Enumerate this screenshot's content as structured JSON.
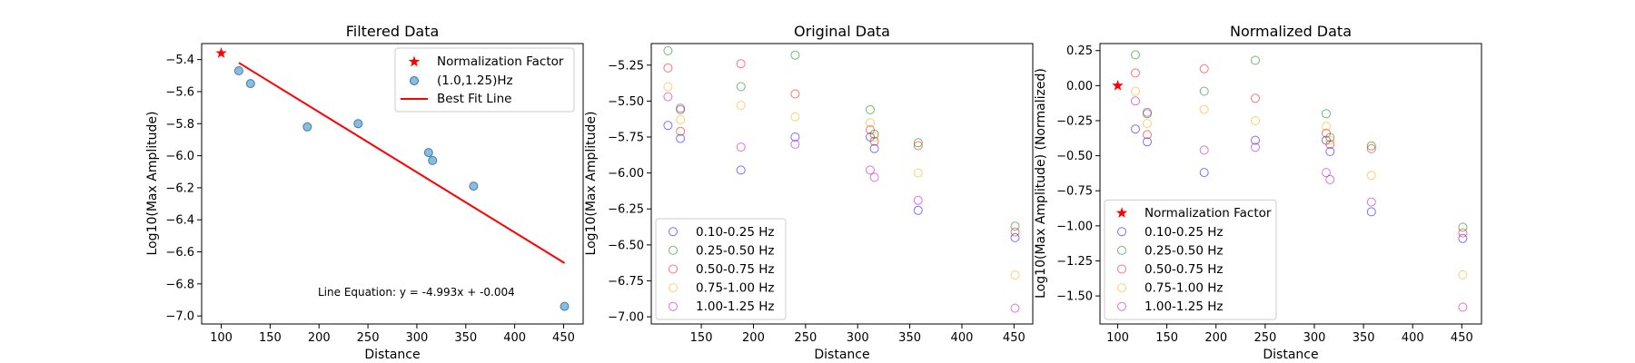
{
  "chart_data": [
    {
      "type": "scatter",
      "title": "Filtered Data",
      "xlabel": "Distance",
      "ylabel": "Log10(Max Amplitude)",
      "xlim": [
        80,
        470
      ],
      "ylim": [
        -7.05,
        -5.3
      ],
      "xticks": [
        100,
        150,
        200,
        250,
        300,
        350,
        400,
        450
      ],
      "yticks": [
        -7.0,
        -6.8,
        -6.6,
        -6.4,
        -6.2,
        -6.0,
        -5.8,
        -5.6,
        -5.4
      ],
      "legend_position": "upper right",
      "normalization_factor": {
        "name": "Normalization Factor",
        "x": 100,
        "y": -5.36,
        "color": "#ff0000",
        "marker": "star"
      },
      "series": [
        {
          "name": "(1.0,1.25)Hz",
          "color": "#1f77b4",
          "x": [
            118,
            130,
            188,
            240,
            312,
            316,
            358,
            451
          ],
          "y": [
            -5.47,
            -5.55,
            -5.82,
            -5.8,
            -5.98,
            -6.03,
            -6.19,
            -6.94
          ]
        }
      ],
      "fit_line": {
        "name": "Best Fit Line",
        "color": "#ff0000",
        "x": [
          118,
          451
        ],
        "y": [
          -5.42,
          -6.67
        ]
      },
      "annotation": "Line Equation: y = -4.993x + -0.004"
    },
    {
      "type": "scatter",
      "title": "Original Data",
      "xlabel": "Distance",
      "ylabel": "Log10(Max Amplitude)",
      "xlim": [
        102,
        468
      ],
      "ylim": [
        -7.05,
        -5.1
      ],
      "xticks": [
        150,
        200,
        250,
        300,
        350,
        400,
        450
      ],
      "yticks": [
        -7.0,
        -6.75,
        -6.5,
        -6.25,
        -6.0,
        -5.75,
        -5.5,
        -5.25
      ],
      "legend_position": "lower left",
      "x": [
        118,
        130,
        188,
        240,
        312,
        316,
        358,
        451
      ],
      "series": [
        {
          "name": "0.10-0.25 Hz",
          "color": "#0000ff",
          "y": [
            -5.67,
            -5.76,
            -5.98,
            -5.75,
            -5.75,
            -5.83,
            -6.26,
            -6.45
          ]
        },
        {
          "name": "0.25-0.50 Hz",
          "color": "#008000",
          "y": [
            -5.15,
            -5.56,
            -5.4,
            -5.18,
            -5.56,
            -5.73,
            -5.79,
            -6.37
          ]
        },
        {
          "name": "0.50-0.75 Hz",
          "color": "#ff0000",
          "y": [
            -5.27,
            -5.71,
            -5.24,
            -5.45,
            -5.7,
            -5.78,
            -5.81,
            -6.41
          ]
        },
        {
          "name": "0.75-1.00 Hz",
          "color": "#ffa500",
          "y": [
            -5.4,
            -5.63,
            -5.53,
            -5.61,
            -5.65,
            -5.75,
            -6.0,
            -6.71
          ]
        },
        {
          "name": "1.00-1.25 Hz",
          "color": "#bf00bf",
          "y": [
            -5.47,
            -5.55,
            -5.82,
            -5.8,
            -5.98,
            -6.03,
            -6.19,
            -6.94
          ]
        }
      ]
    },
    {
      "type": "scatter",
      "title": "Normalized Data",
      "xlabel": "Distance",
      "ylabel": "Log10(Max Amplitude) (Normalized)",
      "xlim": [
        82,
        470
      ],
      "ylim": [
        -1.7,
        0.3
      ],
      "xticks": [
        100,
        150,
        200,
        250,
        300,
        350,
        400,
        450
      ],
      "yticks": [
        -1.5,
        -1.25,
        -1.0,
        -0.75,
        -0.5,
        -0.25,
        0.0,
        0.25
      ],
      "legend_position": "lower left",
      "normalization_factor": {
        "name": "Normalization Factor",
        "x": 100,
        "y": 0.0,
        "color": "#ff0000",
        "marker": "star"
      },
      "x": [
        118,
        130,
        188,
        240,
        312,
        316,
        358,
        451
      ],
      "series": [
        {
          "name": "0.10-0.25 Hz",
          "color": "#0000ff",
          "y": [
            -0.31,
            -0.4,
            -0.62,
            -0.39,
            -0.39,
            -0.47,
            -0.9,
            -1.09
          ]
        },
        {
          "name": "0.25-0.50 Hz",
          "color": "#008000",
          "y": [
            0.22,
            -0.2,
            -0.04,
            0.18,
            -0.2,
            -0.37,
            -0.43,
            -1.01
          ]
        },
        {
          "name": "0.50-0.75 Hz",
          "color": "#ff0000",
          "y": [
            0.09,
            -0.35,
            0.12,
            -0.09,
            -0.34,
            -0.42,
            -0.45,
            -1.05
          ]
        },
        {
          "name": "0.75-1.00 Hz",
          "color": "#ffa500",
          "y": [
            -0.04,
            -0.27,
            -0.17,
            -0.25,
            -0.29,
            -0.39,
            -0.64,
            -1.35
          ]
        },
        {
          "name": "1.00-1.25 Hz",
          "color": "#bf00bf",
          "y": [
            -0.11,
            -0.19,
            -0.46,
            -0.44,
            -0.62,
            -0.67,
            -0.83,
            -1.58
          ]
        }
      ]
    }
  ]
}
